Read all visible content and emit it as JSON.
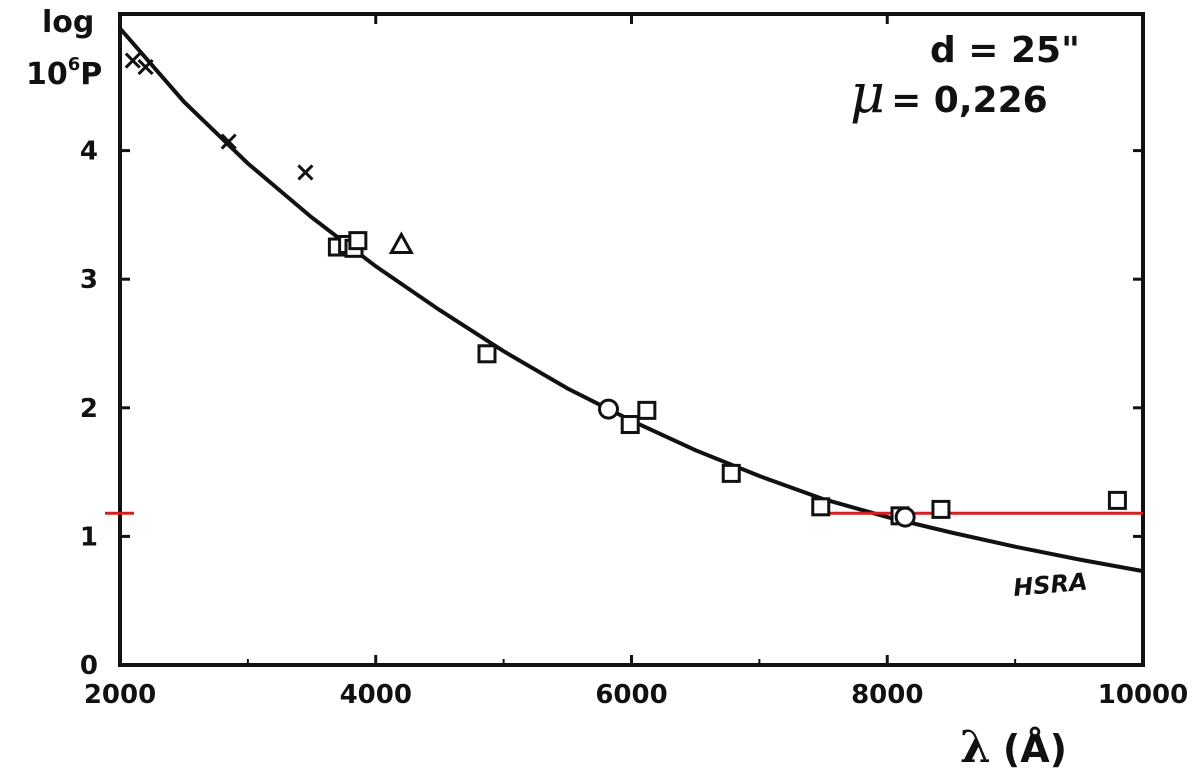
{
  "chart_data": {
    "type": "scatter",
    "ylabel_line1": "log",
    "ylabel_line2": "10",
    "ylabel_sup": "6",
    "ylabel_line2_end": "P",
    "xlabel_lambda": "λ",
    "xlabel_unit": "(Å)",
    "xlim": [
      2000,
      10000
    ],
    "ylim": [
      0,
      5
    ],
    "x_ticks": [
      "2000",
      "4000",
      "6000",
      "8000",
      "10000"
    ],
    "x_tick_values": [
      2000,
      4000,
      6000,
      8000,
      10000
    ],
    "y_ticks": [
      "0",
      "1",
      "2",
      "3",
      "4"
    ],
    "y_tick_values": [
      0,
      1,
      2,
      3,
      4
    ],
    "annotation_d": "d = 25\"",
    "annotation_mu_symbol": "μ",
    "annotation_mu_value": "= 0,226",
    "curve_label": "HSRA",
    "series": [
      {
        "marker": "cross",
        "x": [
          2100,
          2200,
          2850,
          3450
        ],
        "y": [
          4.7,
          4.65,
          4.07,
          3.83
        ]
      },
      {
        "marker": "square",
        "x": [
          3700,
          3780,
          3830,
          3860,
          4870,
          5990,
          6120,
          6780,
          7480,
          8100,
          8420,
          9800
        ],
        "y": [
          3.25,
          3.27,
          3.24,
          3.3,
          2.42,
          1.87,
          1.98,
          1.49,
          1.23,
          1.16,
          1.21,
          1.28
        ]
      },
      {
        "marker": "circle",
        "x": [
          5820,
          8140
        ],
        "y": [
          1.99,
          1.15
        ]
      },
      {
        "marker": "triangle",
        "x": [
          4200
        ],
        "y": [
          3.27
        ]
      }
    ],
    "model_curve": {
      "x": [
        2000,
        2500,
        3000,
        3500,
        4000,
        4500,
        5000,
        5500,
        6000,
        6500,
        7000,
        7500,
        8000,
        8500,
        9000,
        9500,
        10000
      ],
      "y": [
        4.95,
        4.38,
        3.9,
        3.48,
        3.1,
        2.76,
        2.44,
        2.15,
        1.9,
        1.67,
        1.47,
        1.29,
        1.15,
        1.03,
        0.92,
        0.82,
        0.73
      ]
    },
    "reference_line": {
      "y": 1.18,
      "x_start": 7500,
      "x_end": 10000,
      "color": "#d42020"
    },
    "axis_color": "#111111"
  }
}
